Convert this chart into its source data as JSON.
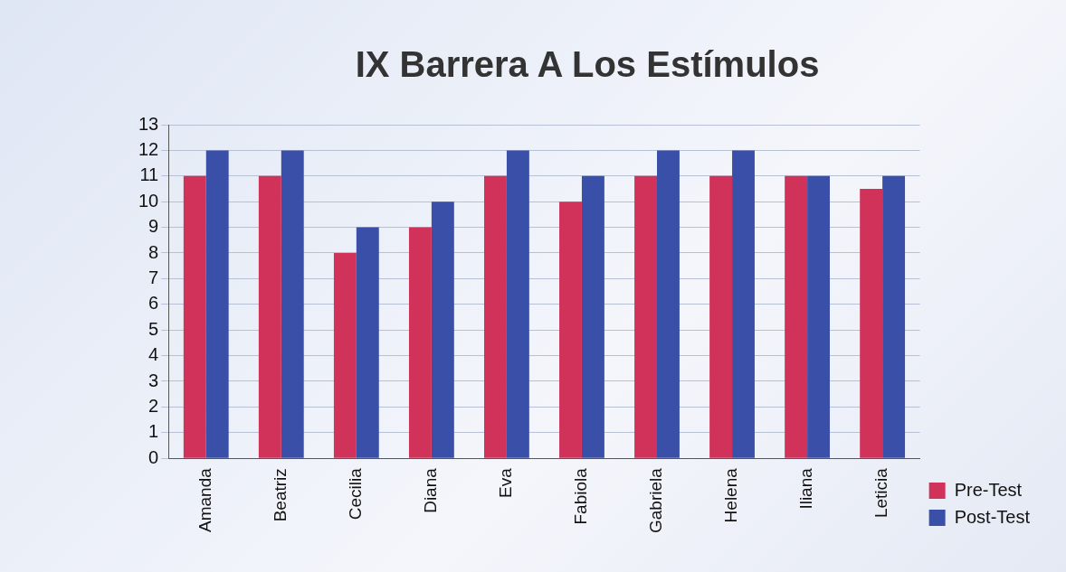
{
  "chart_data": {
    "type": "bar",
    "title": "IX Barrera A Los Estímulos",
    "categories": [
      "Amanda",
      "Beatriz",
      "Cecilia",
      "Diana",
      "Eva",
      "Fabiola",
      "Gabriela",
      "Helena",
      "Iliana",
      "Leticia"
    ],
    "series": [
      {
        "name": "Pre-Test",
        "color": "#d0325a",
        "values": [
          11,
          11,
          8,
          9,
          11,
          10,
          11,
          11,
          11,
          10.5
        ]
      },
      {
        "name": "Post-Test",
        "color": "#3a4fa8",
        "values": [
          12,
          12,
          9,
          10,
          12,
          11,
          12,
          12,
          11,
          11
        ]
      }
    ],
    "ylim": [
      0,
      13
    ],
    "yticks": [
      0,
      1,
      2,
      3,
      4,
      5,
      6,
      7,
      8,
      9,
      10,
      11,
      12,
      13
    ],
    "grid": "y",
    "legend": "bottom right"
  }
}
